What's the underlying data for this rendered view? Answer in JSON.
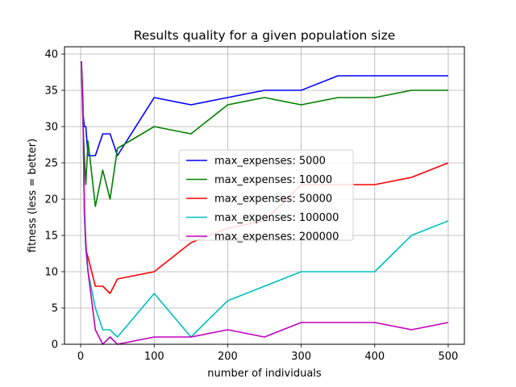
{
  "chart_data": {
    "type": "line",
    "title": "Results quality for a given population size",
    "xlabel": "number of individuals",
    "ylabel": "fitness (less = better)",
    "xlim": [
      -22,
      522
    ],
    "ylim": [
      0,
      41
    ],
    "xticks": [
      0,
      100,
      200,
      300,
      400,
      500
    ],
    "yticks": [
      0,
      5,
      10,
      15,
      20,
      25,
      30,
      35,
      40
    ],
    "grid": true,
    "legend_position": "center-right",
    "series": [
      {
        "name": "max_expenses: 5000",
        "color": "#0000ff",
        "x": [
          1,
          3,
          5,
          7,
          10,
          20,
          30,
          40,
          50,
          100,
          150,
          200,
          250,
          300,
          350,
          400,
          450,
          500
        ],
        "y": [
          39,
          32,
          30,
          30,
          26,
          26,
          29,
          29,
          26,
          34,
          33,
          34,
          35,
          35,
          37,
          37,
          37,
          37
        ]
      },
      {
        "name": "max_expenses: 10000",
        "color": "#008000",
        "x": [
          1,
          3,
          5,
          7,
          10,
          20,
          30,
          40,
          50,
          100,
          150,
          200,
          250,
          300,
          350,
          400,
          450,
          500
        ],
        "y": [
          38,
          31,
          26,
          22,
          28,
          19,
          24,
          20,
          27,
          30,
          29,
          33,
          34,
          33,
          34,
          34,
          35,
          35
        ]
      },
      {
        "name": "max_expenses: 50000",
        "color": "#ff0000",
        "x": [
          1,
          3,
          5,
          7,
          10,
          20,
          30,
          40,
          50,
          100,
          150,
          200,
          250,
          300,
          350,
          400,
          450,
          500
        ],
        "y": [
          39,
          34,
          18,
          13,
          12,
          8,
          8,
          7,
          9,
          10,
          14,
          16,
          17,
          22,
          22,
          22,
          23,
          25
        ]
      },
      {
        "name": "max_expenses: 100000",
        "color": "#00bfbf",
        "x": [
          1,
          3,
          5,
          7,
          10,
          20,
          30,
          40,
          50,
          100,
          150,
          200,
          250,
          300,
          350,
          400,
          450,
          500
        ],
        "y": [
          39,
          33,
          18,
          13,
          10,
          5,
          2,
          2,
          1,
          7,
          1,
          6,
          8,
          10,
          10,
          10,
          15,
          17
        ]
      },
      {
        "name": "max_expenses: 200000",
        "color": "#bf00bf",
        "x": [
          1,
          3,
          5,
          7,
          10,
          20,
          30,
          40,
          50,
          100,
          150,
          200,
          250,
          300,
          350,
          400,
          450,
          500
        ],
        "y": [
          39,
          33,
          19,
          14,
          10,
          2,
          0,
          1,
          0,
          1,
          1,
          2,
          1,
          3,
          3,
          3,
          2,
          3
        ]
      }
    ]
  }
}
